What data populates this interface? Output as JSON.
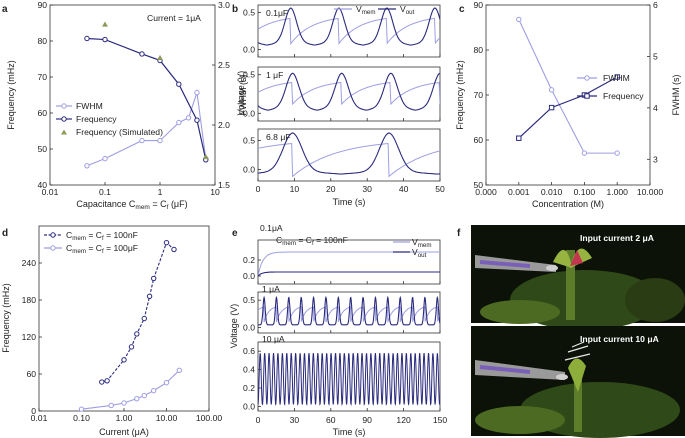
{
  "colors": {
    "light": "#9e9ee3",
    "dark": "#2a2a7e",
    "olive": "#8f9a5a",
    "axis": "#333333"
  },
  "panels": {
    "a": {
      "letter": "a",
      "annotation": "Current = 1μA",
      "ylabel": "Frequency (mHz)",
      "y2label": "FWHM (s)",
      "xlabel_pre": "Capacitance C",
      "xlabel_sub1": "mem",
      "xlabel_mid": " = C",
      "xlabel_sub2": "f",
      "xlabel_post": " (μF)",
      "legend": [
        "FWHM",
        "Frequency",
        "Frequency (Simulated)"
      ]
    },
    "b": {
      "letter": "b",
      "ylabel": "Voltage (V)",
      "xlabel": "Time (s)",
      "legend1_pre": "V",
      "legend1_sub": "mem",
      "legend2_pre": "V",
      "legend2_sub": "out",
      "labels": [
        "0.1μF",
        "1 μF",
        "6.8 μF"
      ]
    },
    "c": {
      "letter": "c",
      "ylabel": "Frequency (mHz)",
      "y2label": "FWHM (s)",
      "xlabel": "Concentration (M)",
      "legend": [
        "FWHM",
        "Frequency"
      ]
    },
    "d": {
      "letter": "d",
      "ylabel": "Frequency (mHz)",
      "xlabel": "Current (μA)",
      "legend": [
        {
          "pre": "C",
          "sub1": "mem",
          "mid": " = C",
          "sub2": "f",
          "post": " = 100nF"
        },
        {
          "pre": "C",
          "sub1": "mem",
          "mid": " = C",
          "sub2": "f",
          "post": " = 100μF"
        }
      ]
    },
    "e": {
      "letter": "e",
      "ylabel": "Voltage (V)",
      "xlabel": "Time (s)",
      "labels": [
        "0.1μA",
        "1 μA",
        "10 μA"
      ],
      "annotation_pre": "C",
      "annotation_sub": "mem",
      "annotation_post": " = C",
      "annotation_sub2": "f",
      "annotation_post2": " = 100nF",
      "legend1_pre": "V",
      "legend1_sub": "mem",
      "legend2_pre": "V",
      "legend2_sub": "out"
    },
    "f": {
      "letter": "f",
      "captions": [
        "Input current  2 μA",
        "Input current  10 μA"
      ]
    }
  },
  "chart_data": [
    {
      "panel": "a",
      "type": "line",
      "xscale": "log",
      "xlim": [
        0.01,
        10
      ],
      "ylim": [
        40,
        90
      ],
      "y2lim": [
        1.5,
        3.0
      ],
      "xticks": [
        "0.01",
        "0.1",
        "1",
        "10"
      ],
      "yticks": [
        "40",
        "50",
        "60",
        "70",
        "80",
        "90"
      ],
      "y2ticks": [
        "1.5",
        "2.0",
        "2.5",
        "3.0"
      ],
      "series": [
        {
          "name": "FWHM",
          "axis": "right",
          "x": [
            0.047,
            0.1,
            0.47,
            1,
            2.2,
            3.3,
            4.7,
            6.8
          ],
          "values": [
            1.66,
            1.72,
            1.87,
            1.87,
            2.02,
            2.06,
            2.27,
            1.72
          ]
        },
        {
          "name": "Frequency",
          "axis": "left",
          "x": [
            0.047,
            0.1,
            0.47,
            1,
            2.2,
            4.7,
            6.8
          ],
          "values": [
            80.7,
            80.4,
            76.4,
            74.6,
            68,
            58,
            47
          ]
        },
        {
          "name": "Frequency (Simulated)",
          "axis": "left",
          "x": [
            0.1,
            1,
            6.8
          ],
          "values": [
            84.6,
            75.3,
            47.8
          ]
        }
      ]
    },
    {
      "panel": "b",
      "type": "line",
      "xlim": [
        0,
        50
      ],
      "xticks": [
        "0",
        "10",
        "20",
        "30",
        "40",
        "50"
      ],
      "subplots": [
        {
          "label": "0.1μF",
          "yticks": [
            "0.0",
            "0.5"
          ],
          "ylim": [
            -0.1,
            0.6
          ]
        },
        {
          "label": "1 μF",
          "yticks": [
            "0.0",
            "0.5"
          ],
          "ylim": [
            -0.1,
            0.6
          ]
        },
        {
          "label": "6.8 μF",
          "yticks": [
            "0.0",
            "0.5"
          ],
          "ylim": [
            -0.2,
            0.7
          ]
        }
      ],
      "series": [
        {
          "name": "V",
          "values": []
        },
        {
          "name": "V",
          "values": []
        }
      ]
    },
    {
      "panel": "c",
      "type": "line",
      "xscale": "log",
      "xlim": [
        0.0001,
        10
      ],
      "ylim": [
        50,
        90
      ],
      "y2lim": [
        2.5,
        6
      ],
      "xticks": [
        "0.000",
        "0.001",
        "0.010",
        "0.100",
        "1.000",
        "10.000"
      ],
      "yticks": [
        "50",
        "60",
        "70",
        "80",
        "90"
      ],
      "y2ticks": [
        "3",
        "4",
        "5",
        "6"
      ],
      "series": [
        {
          "name": "FWHM",
          "axis": "right",
          "x": [
            0.001,
            0.01,
            0.1,
            1
          ],
          "values": [
            5.72,
            4.35,
            3.12,
            3.12
          ]
        },
        {
          "name": "Frequency",
          "axis": "left",
          "x": [
            0.001,
            0.01,
            0.1,
            1
          ],
          "values": [
            60.4,
            67.2,
            70,
            74
          ]
        }
      ]
    },
    {
      "panel": "d",
      "type": "line",
      "xscale": "log",
      "xlim": [
        0.01,
        100
      ],
      "ylim": [
        0,
        300
      ],
      "xticks": [
        "0.01",
        "0.10",
        "1.00",
        "10.00",
        "100.00"
      ],
      "yticks": [
        "0",
        "60",
        "120",
        "180",
        "240"
      ],
      "series": [
        {
          "name": "C = C = 100nF",
          "x": [
            0.3,
            0.4,
            1,
            1.5,
            2,
            3,
            4,
            5,
            10,
            15
          ],
          "values": [
            47,
            49,
            83,
            104,
            125,
            150,
            186,
            215,
            273,
            262
          ]
        },
        {
          "name": "C = C = 100μF",
          "x": [
            0.1,
            0.5,
            1,
            2,
            3,
            5,
            10,
            20
          ],
          "values": [
            3,
            9,
            13,
            20,
            25,
            33,
            46,
            66
          ]
        }
      ]
    },
    {
      "panel": "e",
      "type": "line",
      "xlim": [
        0,
        150
      ],
      "xticks": [
        "0",
        "30",
        "60",
        "90",
        "120",
        "150"
      ],
      "subplots": [
        {
          "label": "0.1μA",
          "yticks": [
            "0.0",
            "0.2"
          ]
        },
        {
          "label": "1 μA",
          "yticks": [
            "0.0",
            "0.5"
          ]
        },
        {
          "label": "10 μA",
          "yticks": [
            "0.0",
            "0.2",
            "0.4",
            "0.6"
          ],
          "ylim": [
            -0.05,
            0.7
          ]
        }
      ]
    }
  ]
}
